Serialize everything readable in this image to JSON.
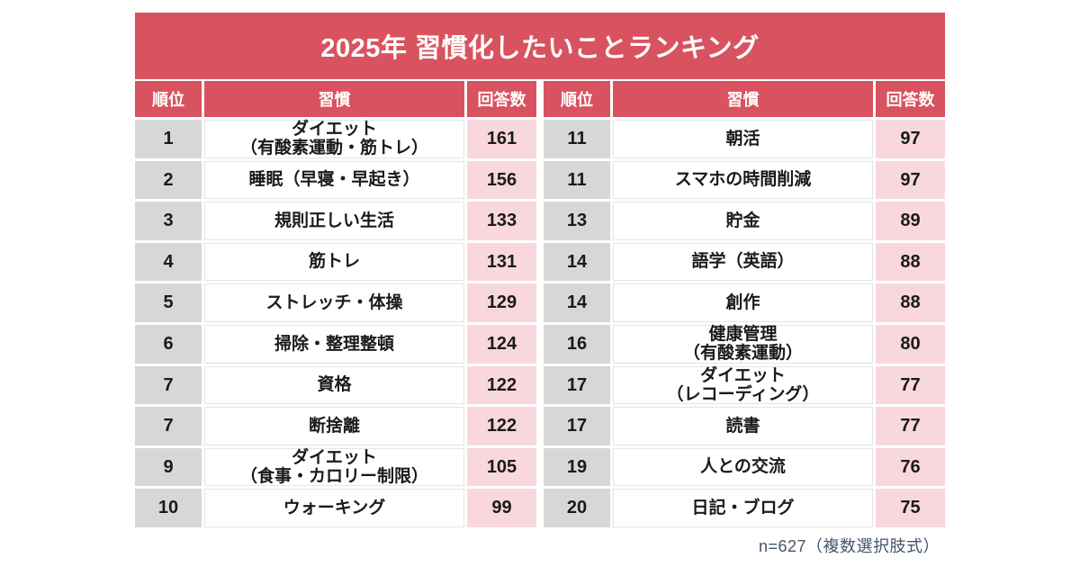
{
  "title": "2025年 習慣化したいことランキング",
  "columns": {
    "rank": "順位",
    "habit": "習慣",
    "count": "回答数"
  },
  "tables": [
    {
      "rows": [
        {
          "rank": "1",
          "habit": "ダイエット\n（有酸素運動・筋トレ）",
          "count": "161"
        },
        {
          "rank": "2",
          "habit": "睡眠（早寝・早起き）",
          "count": "156"
        },
        {
          "rank": "3",
          "habit": "規則正しい生活",
          "count": "133"
        },
        {
          "rank": "4",
          "habit": "筋トレ",
          "count": "131"
        },
        {
          "rank": "5",
          "habit": "ストレッチ・体操",
          "count": "129"
        },
        {
          "rank": "6",
          "habit": "掃除・整理整頓",
          "count": "124"
        },
        {
          "rank": "7",
          "habit": "資格",
          "count": "122"
        },
        {
          "rank": "7",
          "habit": "断捨離",
          "count": "122"
        },
        {
          "rank": "9",
          "habit": "ダイエット\n（食事・カロリー制限）",
          "count": "105"
        },
        {
          "rank": "10",
          "habit": "ウォーキング",
          "count": "99"
        }
      ]
    },
    {
      "rows": [
        {
          "rank": "11",
          "habit": "朝活",
          "count": "97"
        },
        {
          "rank": "11",
          "habit": "スマホの時間削減",
          "count": "97"
        },
        {
          "rank": "13",
          "habit": "貯金",
          "count": "89"
        },
        {
          "rank": "14",
          "habit": "語学（英語）",
          "count": "88"
        },
        {
          "rank": "14",
          "habit": "創作",
          "count": "88"
        },
        {
          "rank": "16",
          "habit": "健康管理\n（有酸素運動）",
          "count": "80"
        },
        {
          "rank": "17",
          "habit": "ダイエット\n（レコーディング）",
          "count": "77"
        },
        {
          "rank": "17",
          "habit": "読書",
          "count": "77"
        },
        {
          "rank": "19",
          "habit": "人との交流",
          "count": "76"
        },
        {
          "rank": "20",
          "habit": "日記・ブログ",
          "count": "75"
        }
      ]
    }
  ],
  "footer": "n=627（複数選択肢式）",
  "colors": {
    "red": "#d8535f",
    "gray": "#d7d7d7",
    "pink": "#f8d8dd",
    "note": "#44546a"
  },
  "chart_data": {
    "type": "table",
    "title": "2025年 習慣化したいことランキング",
    "columns": [
      "順位",
      "習慣",
      "回答数"
    ],
    "rows": [
      [
        1,
        "ダイエット（有酸素運動・筋トレ）",
        161
      ],
      [
        2,
        "睡眠（早寝・早起き）",
        156
      ],
      [
        3,
        "規則正しい生活",
        133
      ],
      [
        4,
        "筋トレ",
        131
      ],
      [
        5,
        "ストレッチ・体操",
        129
      ],
      [
        6,
        "掃除・整理整頓",
        124
      ],
      [
        7,
        "資格",
        122
      ],
      [
        7,
        "断捨離",
        122
      ],
      [
        9,
        "ダイエット（食事・カロリー制限）",
        105
      ],
      [
        10,
        "ウォーキング",
        99
      ],
      [
        11,
        "朝活",
        97
      ],
      [
        11,
        "スマホの時間削減",
        97
      ],
      [
        13,
        "貯金",
        89
      ],
      [
        14,
        "語学（英語）",
        88
      ],
      [
        14,
        "創作",
        88
      ],
      [
        16,
        "健康管理（有酸素運動）",
        80
      ],
      [
        17,
        "ダイエット（レコーディング）",
        77
      ],
      [
        17,
        "読書",
        77
      ],
      [
        19,
        "人との交流",
        76
      ],
      [
        20,
        "日記・ブログ",
        75
      ]
    ],
    "note": "n=627（複数選択肢式）"
  }
}
